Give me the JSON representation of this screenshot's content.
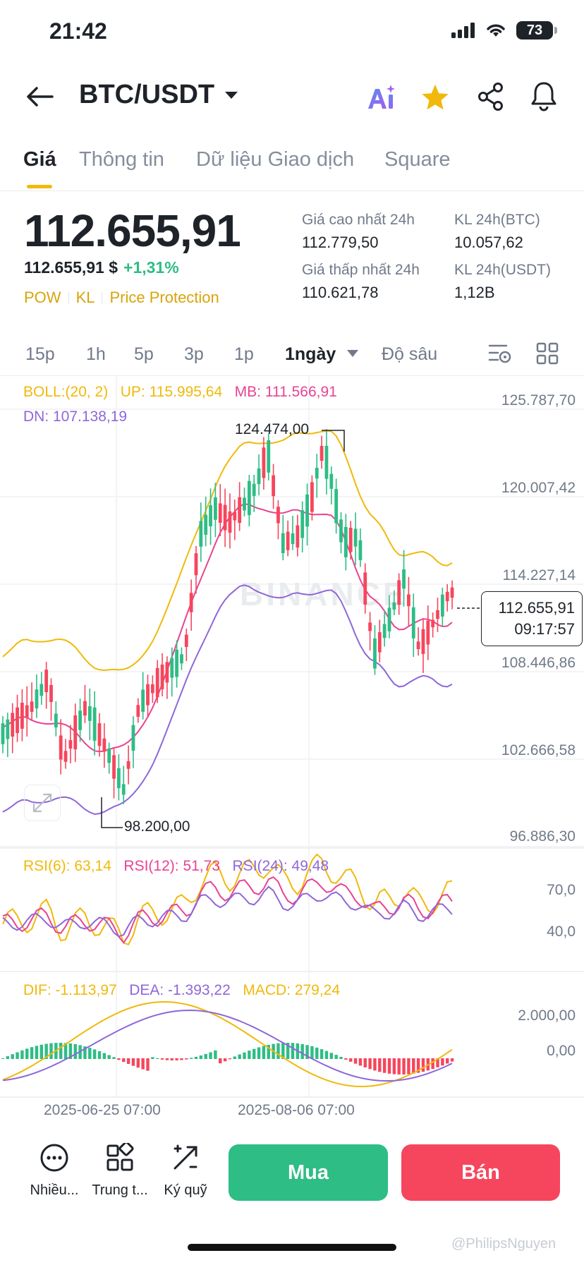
{
  "status_bar": {
    "time": "21:42",
    "battery": "73"
  },
  "header": {
    "pair": "BTC/USDT"
  },
  "tabs": [
    {
      "label": "Giá",
      "active": true
    },
    {
      "label": "Thông tin"
    },
    {
      "label": "Dữ liệu Giao dịch"
    },
    {
      "label": "Square"
    }
  ],
  "price": {
    "last": "112.655,91",
    "last_usd": "112.655,91 $",
    "change": "+1,31%",
    "tags": [
      "POW",
      "KL",
      "Price Protection"
    ]
  },
  "stats": {
    "high_label": "Giá cao nhất 24h",
    "high": "112.779,50",
    "low_label": "Giá thấp nhất 24h",
    "low": "110.621,78",
    "vol_btc_label": "KL 24h(BTC)",
    "vol_btc": "10.057,62",
    "vol_usdt_label": "KL 24h(USDT)",
    "vol_usdt": "1,12B"
  },
  "timeframes": [
    "15p",
    "1h",
    "5p",
    "3p",
    "1p",
    "1ngày",
    "Độ sâu"
  ],
  "active_timeframe": "1ngày",
  "boll": {
    "label": "BOLL:(20, 2)",
    "up": "UP: 115.995,64",
    "mb": "MB: 111.566,91",
    "dn": "DN: 107.138,19"
  },
  "price_axis": [
    "125.787,70",
    "120.007,42",
    "114.227,14",
    "108.446,86",
    "102.666,58",
    "96.886,30"
  ],
  "chart_markers": {
    "high": "124.474,00",
    "low": "98.200,00"
  },
  "current_price_box": {
    "price": "112.655,91",
    "countdown": "09:17:57"
  },
  "watermark": "BINANCE",
  "rsi": {
    "rsi6": "RSI(6): 63,14",
    "rsi12": "RSI(12): 51,73",
    "rsi24": "RSI(24): 49,48",
    "axis": [
      "70,0",
      "40,0"
    ]
  },
  "macd": {
    "dif": "DIF: -1.113,97",
    "dea": "DEA: -1.393,22",
    "macd": "MACD: 279,24",
    "axis": [
      "2.000,00",
      "0,00"
    ]
  },
  "dates": [
    "2025-06-25 07:00",
    "2025-08-06 07:00"
  ],
  "bottom_nav": [
    {
      "label": "Nhiều...",
      "icon": "more-icon"
    },
    {
      "label": "Trung t...",
      "icon": "grid-icon"
    },
    {
      "label": "Ký quỹ",
      "icon": "margin-icon"
    }
  ],
  "actions": {
    "buy": "Mua",
    "sell": "Bán"
  },
  "credit": "@PhilipsNguyen",
  "colors": {
    "up": "#2ebd85",
    "down": "#f6465d",
    "accent": "#f0b90b",
    "boll_up": "#f0b90b",
    "boll_mb": "#e84393",
    "boll_dn": "#8e67d8"
  }
}
